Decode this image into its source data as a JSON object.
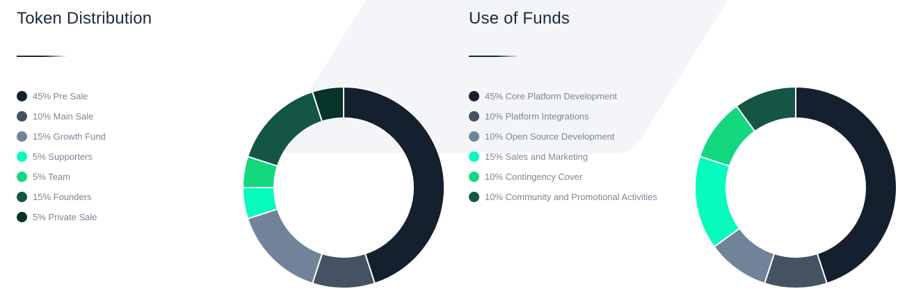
{
  "token_distribution": {
    "title": "Token Distribution",
    "legend": [
      {
        "label": "45% Pre Sale",
        "color": "#14202e"
      },
      {
        "label": "10% Main Sale",
        "color": "#445362"
      },
      {
        "label": "15% Growth Fund",
        "color": "#718399"
      },
      {
        "label": "5% Supporters",
        "color": "#06fbbd"
      },
      {
        "label": "5% Team",
        "color": "#13d87e"
      },
      {
        "label": "15% Founders",
        "color": "#155546"
      },
      {
        "label": "5% Private Sale",
        "color": "#06332a"
      }
    ]
  },
  "use_of_funds": {
    "title": "Use of Funds",
    "legend": [
      {
        "label": "45% Core Platform Development",
        "color": "#14202e"
      },
      {
        "label": "10% Platform Integrations",
        "color": "#445362"
      },
      {
        "label": "10% Open Source Development",
        "color": "#718399"
      },
      {
        "label": "15% Sales and Marketing",
        "color": "#06fbbd"
      },
      {
        "label": "10% Contingency Cover",
        "color": "#13d87e"
      },
      {
        "label": "10% Community and Promotional Activities",
        "color": "#155546"
      }
    ]
  },
  "chart_data": [
    {
      "type": "pie",
      "title": "Token Distribution",
      "categories": [
        "Pre Sale",
        "Main Sale",
        "Growth Fund",
        "Supporters",
        "Team",
        "Founders",
        "Private Sale"
      ],
      "values": [
        45,
        10,
        15,
        5,
        5,
        15,
        5
      ],
      "colors": [
        "#14202e",
        "#445362",
        "#718399",
        "#06fbbd",
        "#13d87e",
        "#155546",
        "#06332a"
      ],
      "unit": "%",
      "style": "donut",
      "legend_position": "left"
    },
    {
      "type": "pie",
      "title": "Use of Funds",
      "categories": [
        "Core Platform Development",
        "Platform Integrations",
        "Open Source Development",
        "Sales and Marketing",
        "Contingency Cover",
        "Community and Promotional Activities"
      ],
      "values": [
        45,
        10,
        10,
        15,
        10,
        10
      ],
      "colors": [
        "#14202e",
        "#445362",
        "#718399",
        "#06fbbd",
        "#13d87e",
        "#155546"
      ],
      "unit": "%",
      "style": "donut",
      "legend_position": "left"
    }
  ]
}
